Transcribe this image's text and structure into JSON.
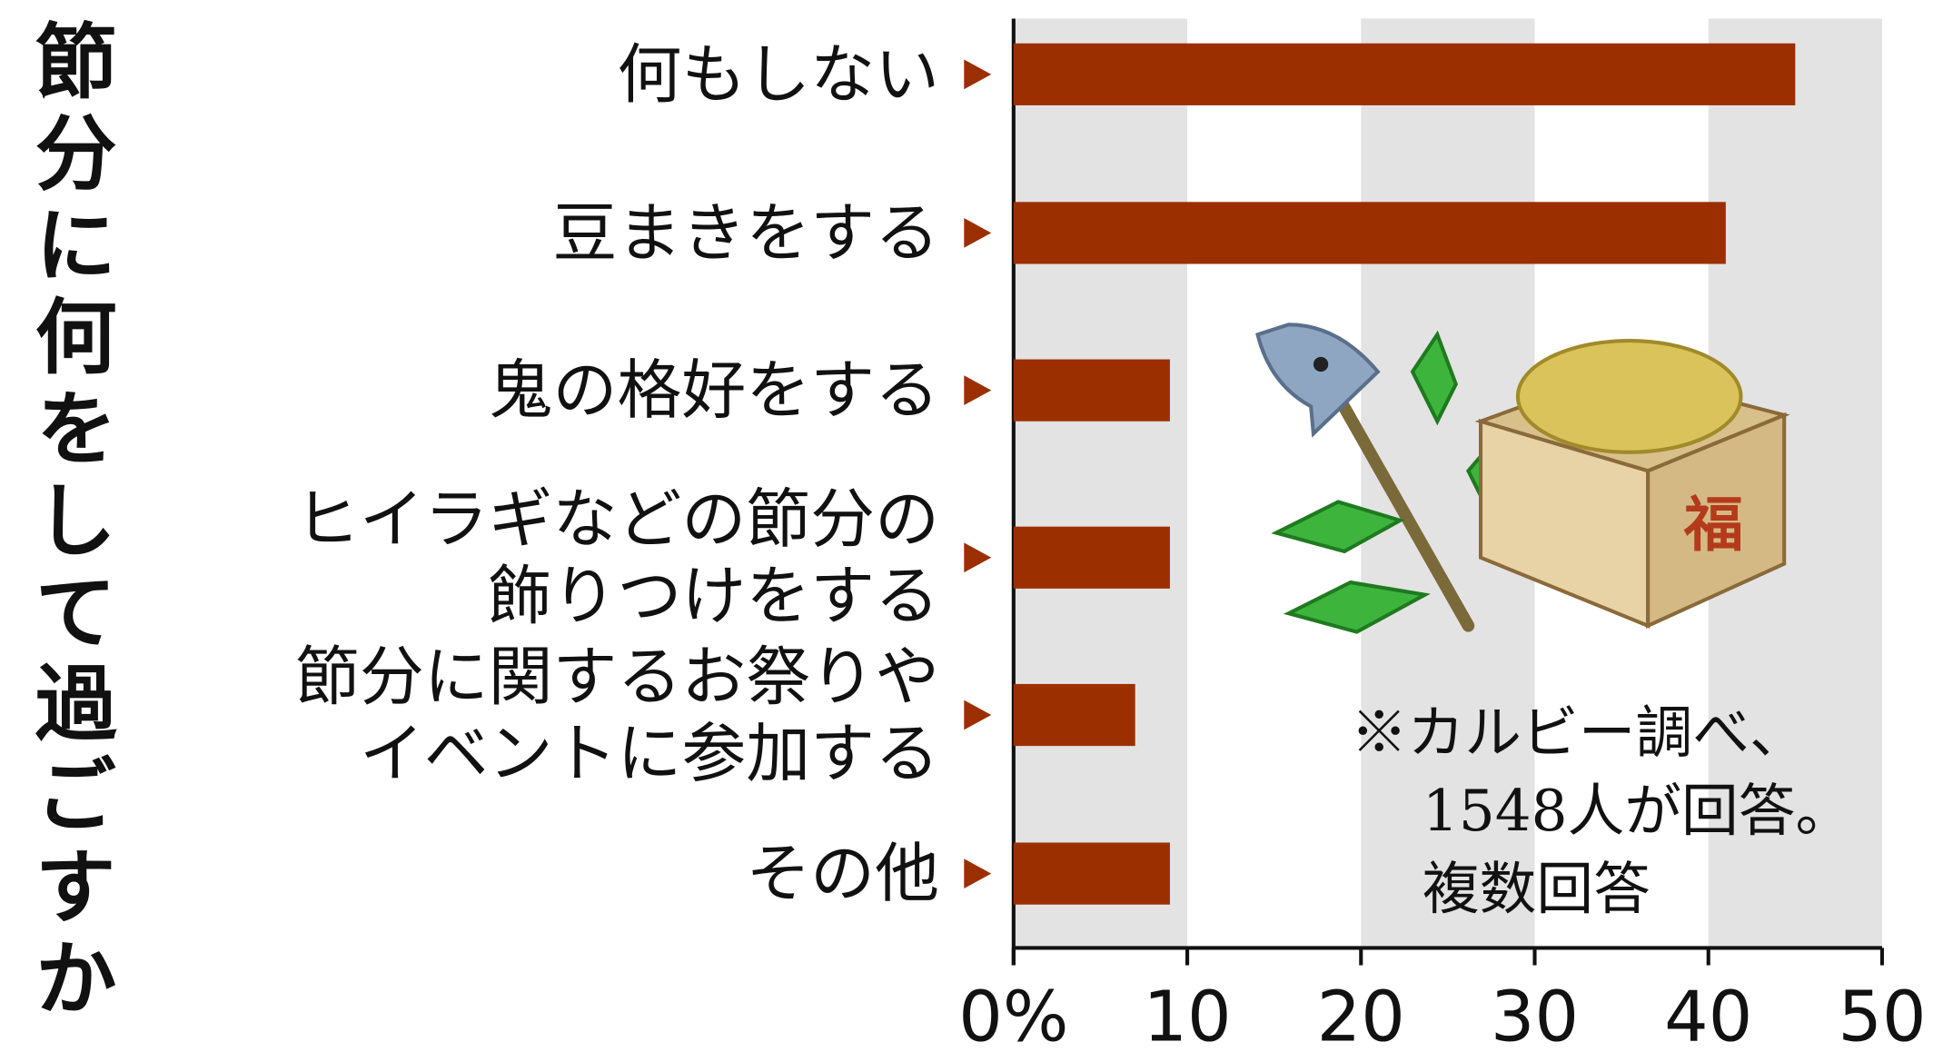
{
  "chart_data": {
    "type": "barh",
    "title": "節分に何をして過ごすか",
    "categories": [
      "何もしない",
      "豆まきをする",
      "鬼の格好をする",
      "ヒイラギなどの節分の\n飾りつけをする",
      "節分に関するお祭りや\nイベントに参加する",
      "その他"
    ],
    "values": [
      45,
      41,
      9,
      9,
      7,
      9
    ],
    "color": "#9c2f00",
    "xlim": [
      0,
      50
    ],
    "xticks": [
      {
        "value": 0,
        "label": "0%"
      },
      10,
      20,
      30,
      40,
      50
    ],
    "grid": true,
    "note": [
      "※カルビー調べ、",
      "1548人が回答。",
      "複数回答"
    ]
  }
}
